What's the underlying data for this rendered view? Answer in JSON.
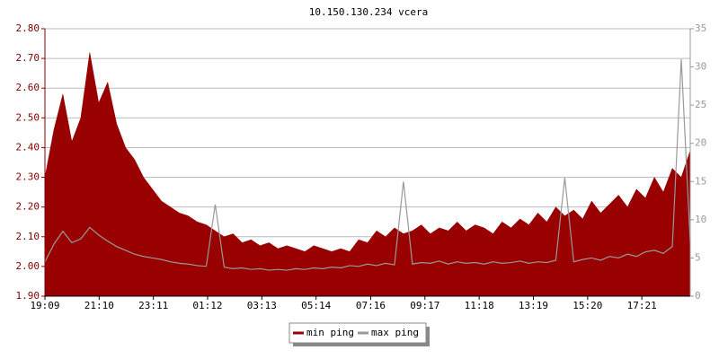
{
  "chart_data": {
    "type": "area-line",
    "title": "10.150.130.234 vcera",
    "x": [
      0,
      20,
      40,
      60,
      80,
      100,
      120,
      140,
      160,
      180,
      200,
      220,
      240,
      260,
      280,
      300,
      320,
      340,
      360,
      380,
      400,
      420,
      440,
      460,
      480,
      500,
      520,
      540,
      560,
      580,
      600,
      620,
      640,
      660,
      680,
      700,
      720,
      740,
      760,
      780,
      800,
      820,
      840,
      860,
      880,
      900,
      920,
      940,
      960,
      980,
      1000,
      1020,
      1040,
      1060,
      1080,
      1100,
      1120,
      1140,
      1160,
      1180,
      1200,
      1220,
      1240,
      1260,
      1280,
      1300,
      1320,
      1340,
      1360,
      1380,
      1400,
      1420,
      1440
    ],
    "xlim": [
      0,
      1440
    ],
    "xticks": [
      {
        "value": 0,
        "label": "19:09"
      },
      {
        "value": 121,
        "label": "21:10"
      },
      {
        "value": 242,
        "label": "23:11"
      },
      {
        "value": 363,
        "label": "01:12"
      },
      {
        "value": 484,
        "label": "03:13"
      },
      {
        "value": 605,
        "label": "05:14"
      },
      {
        "value": 727,
        "label": "07:16"
      },
      {
        "value": 848,
        "label": "09:17"
      },
      {
        "value": 969,
        "label": "11:18"
      },
      {
        "value": 1090,
        "label": "13:19"
      },
      {
        "value": 1211,
        "label": "15:20"
      },
      {
        "value": 1332,
        "label": "17:21"
      }
    ],
    "ylim": [
      1.9,
      2.8
    ],
    "yticks": [
      {
        "value": 1.9,
        "label": "1.90"
      },
      {
        "value": 2.0,
        "label": "2.00"
      },
      {
        "value": 2.1,
        "label": "2.10"
      },
      {
        "value": 2.2,
        "label": "2.20"
      },
      {
        "value": 2.3,
        "label": "2.30"
      },
      {
        "value": 2.4,
        "label": "2.40"
      },
      {
        "value": 2.5,
        "label": "2.50"
      },
      {
        "value": 2.6,
        "label": "2.60"
      },
      {
        "value": 2.7,
        "label": "2.70"
      },
      {
        "value": 2.8,
        "label": "2.80"
      }
    ],
    "y2lim": [
      0,
      35
    ],
    "y2ticks": [
      0,
      5,
      10,
      15,
      20,
      25,
      30,
      35
    ],
    "grid": true,
    "series": [
      {
        "name": "min ping",
        "color": "#990000",
        "values": [
          2.3,
          2.46,
          2.58,
          2.42,
          2.5,
          2.72,
          2.55,
          2.62,
          2.48,
          2.4,
          2.36,
          2.3,
          2.26,
          2.22,
          2.2,
          2.18,
          2.17,
          2.15,
          2.14,
          2.12,
          2.1,
          2.11,
          2.08,
          2.09,
          2.07,
          2.08,
          2.06,
          2.07,
          2.06,
          2.05,
          2.07,
          2.06,
          2.05,
          2.06,
          2.05,
          2.09,
          2.08,
          2.12,
          2.1,
          2.13,
          2.11,
          2.12,
          2.14,
          2.11,
          2.13,
          2.12,
          2.15,
          2.12,
          2.14,
          2.13,
          2.11,
          2.15,
          2.13,
          2.16,
          2.14,
          2.18,
          2.15,
          2.2,
          2.17,
          2.19,
          2.16,
          2.22,
          2.18,
          2.21,
          2.24,
          2.2,
          2.26,
          2.23,
          2.3,
          2.25,
          2.33,
          2.3,
          2.39
        ]
      },
      {
        "name": "max ping",
        "color": "#999999",
        "axis": "y2",
        "values": [
          4.5,
          6.8,
          8.5,
          7.0,
          7.5,
          9.0,
          8.0,
          7.2,
          6.5,
          6.0,
          5.5,
          5.2,
          5.0,
          4.8,
          4.5,
          4.3,
          4.2,
          4.0,
          3.9,
          12.0,
          3.8,
          3.6,
          3.7,
          3.5,
          3.6,
          3.4,
          3.5,
          3.4,
          3.6,
          3.5,
          3.7,
          3.6,
          3.8,
          3.7,
          4.0,
          3.9,
          4.2,
          4.0,
          4.3,
          4.1,
          15.0,
          4.2,
          4.4,
          4.3,
          4.6,
          4.2,
          4.5,
          4.3,
          4.4,
          4.2,
          4.5,
          4.3,
          4.4,
          4.6,
          4.3,
          4.5,
          4.4,
          4.7,
          15.5,
          4.5,
          4.8,
          5.0,
          4.7,
          5.2,
          5.0,
          5.5,
          5.2,
          5.8,
          6.0,
          5.6,
          6.5,
          31.0,
          7.0
        ]
      }
    ],
    "legend": "bottom"
  }
}
